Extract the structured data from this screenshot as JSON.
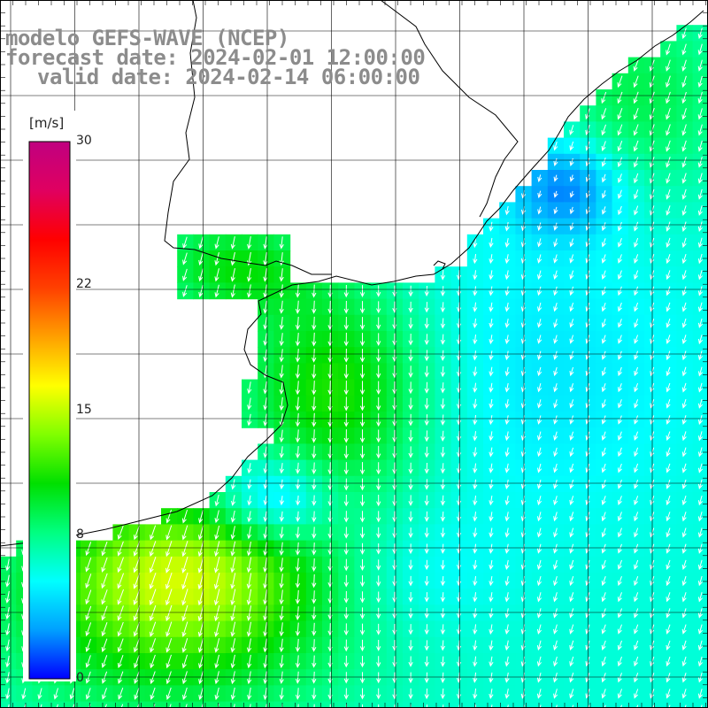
{
  "title": {
    "line1": "modelo GEFS-WAVE (NCEP)",
    "line2": "forecast date: 2024-02-01 12:00:00",
    "line3": "valid date: 2024-02-14 06:00:00"
  },
  "colorbar": {
    "unit": "[m/s]",
    "min": 0,
    "max": 30,
    "ticks": [
      {
        "value": 30,
        "label": "30"
      },
      {
        "value": 22,
        "label": "22"
      },
      {
        "value": 15,
        "label": "15"
      },
      {
        "value": 8,
        "label": "8"
      },
      {
        "value": 0,
        "label": "0"
      }
    ],
    "colors": [
      "#0000ff",
      "#00a0ff",
      "#00ffff",
      "#00ff80",
      "#00e000",
      "#80ff00",
      "#ffff00",
      "#ffa000",
      "#ff4000",
      "#ff0000",
      "#e00060",
      "#c00080"
    ]
  },
  "map": {
    "variable": "10 m wind speed and direction",
    "colors": {
      "land": "#ffffff",
      "coast": "#000000",
      "grid": "#000000",
      "arrow": "#ffffff"
    }
  }
}
